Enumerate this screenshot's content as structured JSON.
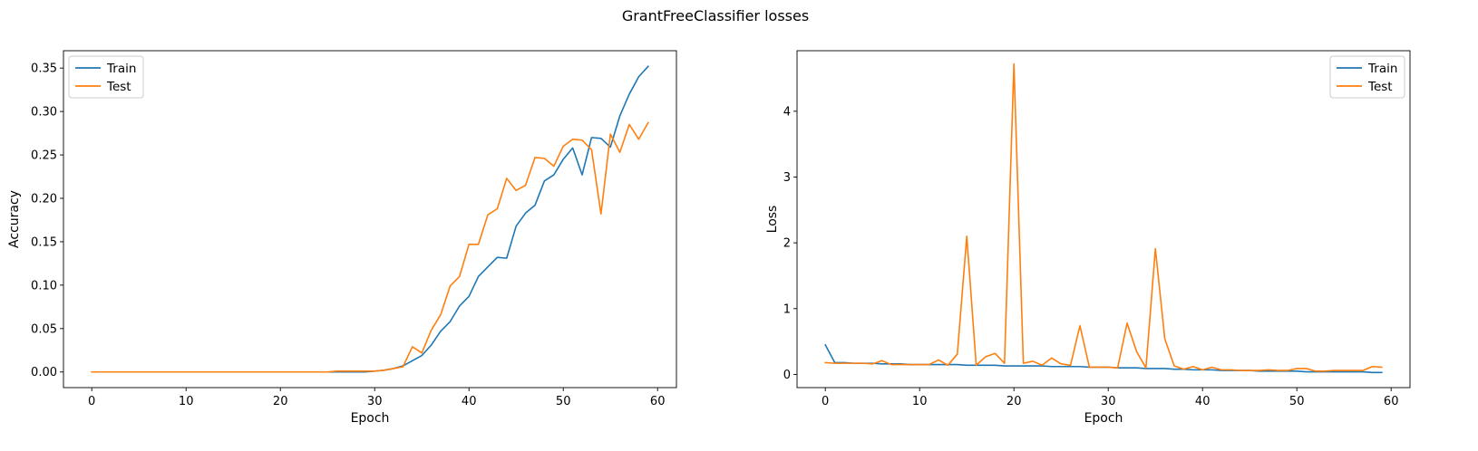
{
  "figure": {
    "title": "GrantFreeClassifier losses"
  },
  "chart_data": [
    {
      "type": "line",
      "xlabel": "Epoch",
      "ylabel": "Accuracy",
      "xlim": [
        -3,
        62
      ],
      "ylim": [
        -0.018,
        0.37
      ],
      "xticks": [
        0,
        10,
        20,
        30,
        40,
        50,
        60
      ],
      "yticks": [
        0.0,
        0.05,
        0.1,
        0.15,
        0.2,
        0.25,
        0.3,
        0.35
      ],
      "ytick_labels": [
        "0.00",
        "0.05",
        "0.10",
        "0.15",
        "0.20",
        "0.25",
        "0.30",
        "0.35"
      ],
      "legend": {
        "position": "top-left"
      },
      "series": [
        {
          "name": "Train",
          "color": "#1f77b4",
          "values": [
            0,
            0,
            0,
            0,
            0,
            0,
            0,
            0,
            0,
            0,
            0,
            0,
            0,
            0,
            0,
            0,
            0,
            0,
            0,
            0,
            0,
            0,
            0,
            0,
            0,
            0,
            0,
            0,
            0,
            0,
            0.001,
            0.002,
            0.004,
            0.007,
            0.013,
            0.019,
            0.031,
            0.047,
            0.058,
            0.076,
            0.087,
            0.11,
            0.121,
            0.132,
            0.131,
            0.168,
            0.183,
            0.192,
            0.22,
            0.227,
            0.245,
            0.258,
            0.227,
            0.27,
            0.269,
            0.259,
            0.295,
            0.32,
            0.34,
            0.352
          ]
        },
        {
          "name": "Test",
          "color": "#ff7f0e",
          "values": [
            0,
            0,
            0,
            0,
            0,
            0,
            0,
            0,
            0,
            0,
            0,
            0,
            0,
            0,
            0,
            0,
            0,
            0,
            0,
            0,
            0,
            0,
            0,
            0,
            0,
            0,
            0.001,
            0.001,
            0.001,
            0.001,
            0.001,
            0.002,
            0.004,
            0.006,
            0.029,
            0.022,
            0.048,
            0.066,
            0.099,
            0.11,
            0.147,
            0.147,
            0.181,
            0.188,
            0.223,
            0.209,
            0.215,
            0.247,
            0.246,
            0.237,
            0.26,
            0.268,
            0.267,
            0.256,
            0.182,
            0.274,
            0.253,
            0.285,
            0.268,
            0.287
          ]
        }
      ]
    },
    {
      "type": "line",
      "xlabel": "Epoch",
      "ylabel": "Loss",
      "xlim": [
        -3,
        62
      ],
      "ylim": [
        -0.2,
        4.92
      ],
      "xticks": [
        0,
        10,
        20,
        30,
        40,
        50,
        60
      ],
      "yticks": [
        0,
        1,
        2,
        3,
        4
      ],
      "ytick_labels": [
        "0",
        "1",
        "2",
        "3",
        "4"
      ],
      "legend": {
        "position": "top-right"
      },
      "series": [
        {
          "name": "Train",
          "color": "#1f77b4",
          "values": [
            0.45,
            0.18,
            0.18,
            0.17,
            0.17,
            0.17,
            0.16,
            0.16,
            0.16,
            0.15,
            0.15,
            0.15,
            0.15,
            0.15,
            0.15,
            0.14,
            0.14,
            0.14,
            0.14,
            0.13,
            0.13,
            0.13,
            0.13,
            0.13,
            0.12,
            0.12,
            0.12,
            0.12,
            0.11,
            0.11,
            0.11,
            0.1,
            0.1,
            0.1,
            0.09,
            0.09,
            0.09,
            0.08,
            0.08,
            0.07,
            0.07,
            0.07,
            0.06,
            0.06,
            0.06,
            0.06,
            0.05,
            0.05,
            0.05,
            0.05,
            0.05,
            0.04,
            0.04,
            0.04,
            0.04,
            0.04,
            0.04,
            0.04,
            0.03,
            0.03
          ]
        },
        {
          "name": "Test",
          "color": "#ff7f0e",
          "values": [
            0.18,
            0.17,
            0.17,
            0.17,
            0.17,
            0.16,
            0.21,
            0.15,
            0.15,
            0.15,
            0.15,
            0.15,
            0.22,
            0.14,
            0.31,
            2.1,
            0.14,
            0.27,
            0.32,
            0.17,
            4.72,
            0.17,
            0.2,
            0.14,
            0.25,
            0.16,
            0.14,
            0.74,
            0.11,
            0.11,
            0.11,
            0.1,
            0.78,
            0.35,
            0.1,
            1.91,
            0.54,
            0.13,
            0.08,
            0.12,
            0.07,
            0.11,
            0.07,
            0.07,
            0.06,
            0.06,
            0.06,
            0.07,
            0.06,
            0.06,
            0.09,
            0.09,
            0.05,
            0.05,
            0.06,
            0.06,
            0.06,
            0.06,
            0.12,
            0.11
          ]
        }
      ]
    }
  ]
}
